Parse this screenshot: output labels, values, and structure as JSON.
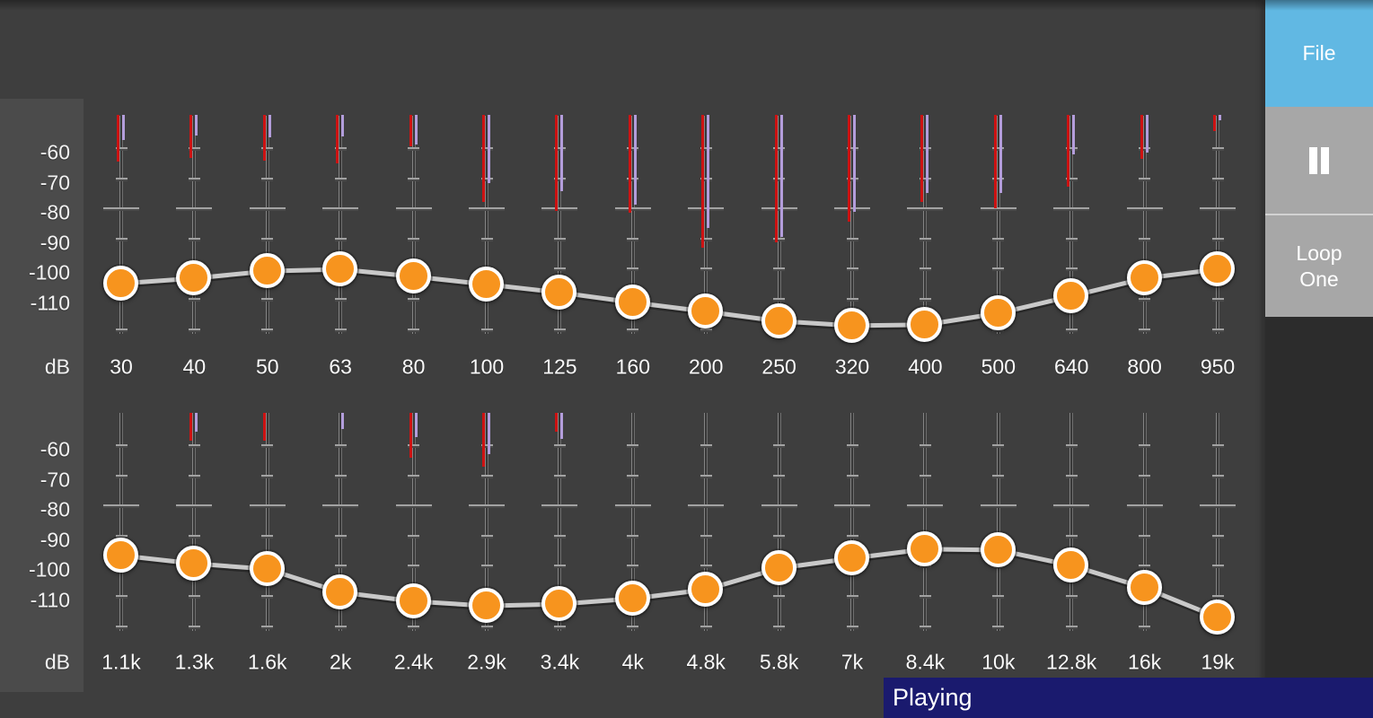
{
  "controls": {
    "file_label": "File",
    "loop_line1": "Loop",
    "loop_line2": "One"
  },
  "status": {
    "playing_label": "Playing"
  },
  "axis": {
    "unit": "dB",
    "tick_labels": [
      -60,
      -70,
      -80,
      -90,
      -100,
      -110
    ]
  },
  "colors": {
    "background": "#3e3e3e",
    "axis_panel": "#4b4b4b",
    "knob_orange": "#f7941e",
    "curve": "#c9c9c9",
    "meter_red": "#cd1212",
    "meter_purple": "#b39ddb",
    "file_blue": "#61b8e3",
    "button_gray": "#a7a7a7",
    "status_navy": "#1a1a6e"
  },
  "chart_data": [
    {
      "type": "line",
      "row": 1,
      "ylabel": "dB",
      "ylim": [
        -121,
        -49
      ],
      "categories": [
        "30",
        "40",
        "50",
        "63",
        "80",
        "100",
        "125",
        "160",
        "200",
        "250",
        "320",
        "400",
        "500",
        "640",
        "800",
        "950"
      ],
      "series": [
        {
          "name": "gain",
          "values": [
            -104.6,
            -102.9,
            -100.5,
            -99.9,
            -102.3,
            -104.9,
            -107.6,
            -110.9,
            -113.9,
            -117.1,
            -118.6,
            -118.3,
            -114.5,
            -108.8,
            -102.9,
            -99.9
          ]
        },
        {
          "name": "meter_red",
          "values": [
            -64.2,
            -63.0,
            -63.9,
            -64.8,
            -59.1,
            -77.6,
            -80.5,
            -81.1,
            -92.7,
            -91.0,
            -84.1,
            -77.6,
            -79.6,
            -72.5,
            -63.3,
            -54.0
          ]
        },
        {
          "name": "meter_purple",
          "values": [
            -57.0,
            -55.5,
            -56.1,
            -55.8,
            -58.5,
            -71.3,
            -74.0,
            -78.5,
            -86.2,
            -89.2,
            -80.8,
            -74.6,
            -74.6,
            -61.8,
            -61.2,
            -50.4
          ]
        }
      ]
    },
    {
      "type": "line",
      "row": 2,
      "ylabel": "dB",
      "ylim": [
        -121,
        -49
      ],
      "categories": [
        "1.1k",
        "1.3k",
        "1.6k",
        "2k",
        "2.4k",
        "2.9k",
        "3.4k",
        "4k",
        "4.8k",
        "5.8k",
        "7k",
        "8.4k",
        "10k",
        "12.8k",
        "16k",
        "19k"
      ],
      "series": [
        {
          "name": "gain",
          "values": [
            -96.3,
            -99.0,
            -100.8,
            -108.5,
            -111.5,
            -113.0,
            -112.4,
            -110.6,
            -107.6,
            -100.5,
            -97.2,
            -94.2,
            -94.5,
            -99.6,
            -107.0,
            -116.8
          ]
        },
        {
          "name": "meter_red",
          "values": [
            null,
            -58.2,
            -58.2,
            null,
            -63.9,
            -66.8,
            -55.3,
            null,
            null,
            null,
            null,
            null,
            null,
            null,
            null,
            null
          ]
        },
        {
          "name": "meter_purple",
          "values": [
            null,
            -55.3,
            null,
            -54.2,
            -57.0,
            -62.7,
            -57.6,
            null,
            null,
            null,
            null,
            null,
            null,
            null,
            null,
            null
          ]
        }
      ]
    }
  ]
}
